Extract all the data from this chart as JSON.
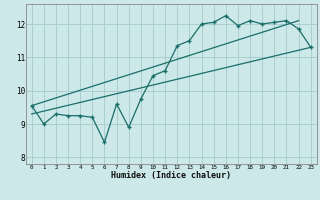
{
  "xlabel": "Humidex (Indice chaleur)",
  "background_color": "#cce8e8",
  "grid_color": "#aacece",
  "line_color": "#1a6e6a",
  "xlim": [
    -0.5,
    23.5
  ],
  "ylim": [
    7.8,
    12.6
  ],
  "x_ticks": [
    0,
    1,
    2,
    3,
    4,
    5,
    6,
    7,
    8,
    9,
    10,
    11,
    12,
    13,
    14,
    15,
    16,
    17,
    18,
    19,
    20,
    21,
    22,
    23
  ],
  "y_ticks": [
    8,
    9,
    10,
    11,
    12
  ],
  "main_x": [
    0,
    1,
    2,
    3,
    4,
    5,
    6,
    7,
    8,
    9,
    10,
    11,
    12,
    13,
    14,
    15,
    16,
    17,
    18,
    19,
    20,
    21,
    22,
    23
  ],
  "main_y": [
    9.55,
    9.0,
    9.3,
    9.25,
    9.25,
    9.2,
    8.45,
    9.6,
    8.9,
    9.75,
    10.45,
    10.6,
    11.35,
    11.5,
    12.0,
    12.05,
    12.25,
    11.95,
    12.1,
    12.0,
    12.05,
    12.1,
    11.85,
    11.3
  ],
  "trend1_x": [
    0,
    23
  ],
  "trend1_y": [
    9.3,
    11.3
  ],
  "trend2_x": [
    0,
    22
  ],
  "trend2_y": [
    9.55,
    12.1
  ]
}
